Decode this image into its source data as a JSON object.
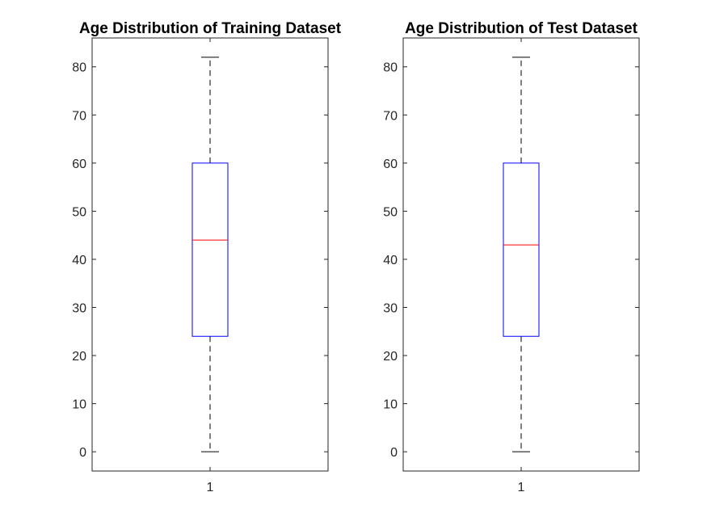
{
  "chart_data": [
    {
      "type": "box",
      "title": "Age Distribution of Training Dataset",
      "xlabel": "",
      "ylabel": "",
      "categories": [
        "1"
      ],
      "ylim": [
        -4,
        86
      ],
      "yticks": [
        0,
        10,
        20,
        30,
        40,
        50,
        60,
        70,
        80
      ],
      "grid": false,
      "legend": "none",
      "boxes": [
        {
          "category": "1",
          "min": 0,
          "q1": 24,
          "median": 44,
          "q3": 60,
          "max": 82
        }
      ]
    },
    {
      "type": "box",
      "title": "Age Distribution of Test Dataset",
      "xlabel": "",
      "ylabel": "",
      "categories": [
        "1"
      ],
      "ylim": [
        -4,
        86
      ],
      "yticks": [
        0,
        10,
        20,
        30,
        40,
        50,
        60,
        70,
        80
      ],
      "grid": false,
      "legend": "none",
      "boxes": [
        {
          "category": "1",
          "min": 0,
          "q1": 24,
          "median": 43,
          "q3": 60,
          "max": 82
        }
      ]
    }
  ],
  "colors": {
    "box": "#0000ff",
    "median": "#ff0000",
    "whisker": "#000000",
    "axes": "#262626"
  }
}
